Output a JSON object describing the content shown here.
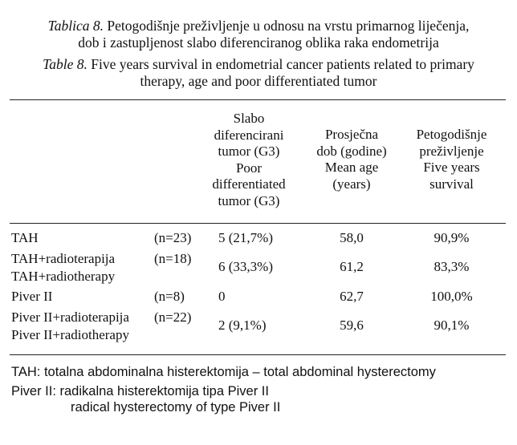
{
  "caption_hr": {
    "label": "Tablica 8.",
    "line1": " Petogodišnje preživljenje u odnosu na vrstu primarnog liječenja,",
    "line2": "dob i zastupljenost slabo diferenciranog oblika raka endometrija"
  },
  "caption_en": {
    "label": "Table 8.",
    "line1": " Five years survival in endometrial cancer patients related to primary",
    "line2": "therapy, age and poor differentiated tumor"
  },
  "columns": {
    "g3": [
      "Slabo",
      "diferencirani",
      "tumor (G3)",
      "Poor",
      "differentiated",
      "tumor (G3)"
    ],
    "age": [
      "Prosječna",
      "dob (godine)",
      "Mean age",
      "(years)"
    ],
    "survival": [
      "Petogodišnje",
      "preživljenje",
      "Five years",
      "survival"
    ]
  },
  "rows": [
    {
      "name_hr": "TAH",
      "name_en": "",
      "n": "(n=23)",
      "g3": "5 (21,7%)",
      "age": "58,0",
      "survival": "90,9%"
    },
    {
      "name_hr": "TAH+radioterapija",
      "name_en": "TAH+radiotherapy",
      "n": "(n=18)",
      "g3": "6 (33,3%)",
      "age": "61,2",
      "survival": "83,3%"
    },
    {
      "name_hr": "Piver II",
      "name_en": "",
      "n": "(n=8)",
      "g3": "0",
      "age": "62,7",
      "survival": "100,0%"
    },
    {
      "name_hr": "Piver II+radioterapija",
      "name_en": "Piver II+radiotherapy",
      "n": "(n=22)",
      "g3": "2 (9,1%)",
      "age": "59,6",
      "survival": "90,1%"
    }
  ],
  "footnotes": {
    "tah": "TAH: totalna abdominalna histerektomija – total abdominal hysterectomy",
    "piver_line1": "Piver II: radikalna histerektomija tipa Piver II",
    "piver_line2": "radical hysterectomy of type Piver II"
  }
}
